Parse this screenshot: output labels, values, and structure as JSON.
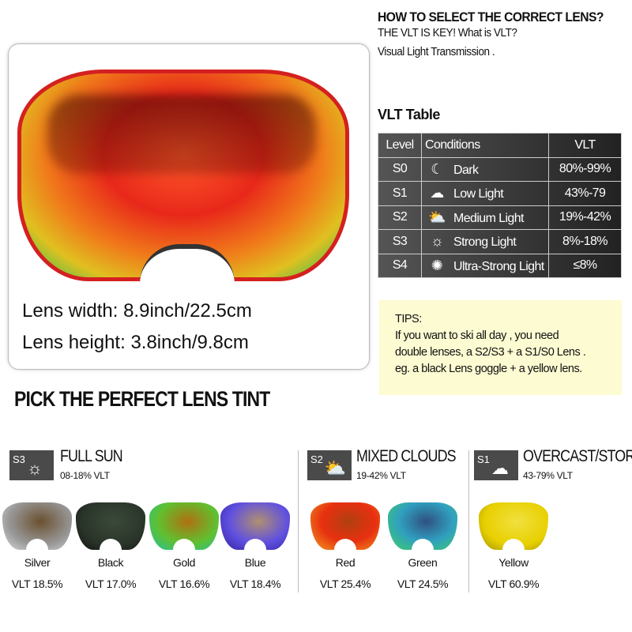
{
  "product": {
    "lens_width": "Lens width: 8.9inch/22.5cm",
    "lens_height": "Lens height: 3.8inch/9.8cm"
  },
  "guide": {
    "title": "HOW TO SELECT THE CORRECT LENS?",
    "line1": "THE VLT  IS KEY! What is VLT?",
    "line2": "Visual Light Transmission .",
    "table_title": "VLT Table"
  },
  "vlt_table": {
    "headers": [
      "Level",
      "Conditions",
      "VLT"
    ],
    "rows": [
      {
        "level": "S0",
        "icon": "moon-icon",
        "glyph": "☾",
        "condition": "Dark",
        "vlt": "80%-99%"
      },
      {
        "level": "S1",
        "icon": "cloud-icon",
        "glyph": "☁",
        "condition": "Low Light",
        "vlt": "43%-79"
      },
      {
        "level": "S2",
        "icon": "sun-cloud-icon",
        "glyph": "⛅",
        "condition": "Medium Light",
        "vlt": "19%-42%"
      },
      {
        "level": "S3",
        "icon": "sun-icon",
        "glyph": "☼",
        "condition": "Strong Light",
        "vlt": "8%-18%"
      },
      {
        "level": "S4",
        "icon": "bright-sun-icon",
        "glyph": "✺",
        "condition": "Ultra-Strong Light",
        "vlt": "≤8%"
      }
    ]
  },
  "tips": {
    "label": "TIPS:",
    "line1": "If you want to ski all day , you need",
    "line2": "double lenses, a S2/S3 + a S1/S0 Lens .",
    "line3": "eg. a black Lens goggle + a yellow lens."
  },
  "tint": {
    "title": "PICK THE PERFECT LENS TINT",
    "groups": [
      {
        "badge": "S3",
        "icon": "sun-icon",
        "glyph": "☼",
        "title": "FULL SUN",
        "range": "08-18% VLT"
      },
      {
        "badge": "S2",
        "icon": "sun-cloud-icon",
        "glyph": "⛅",
        "title": "MIXED CLOUDS",
        "range": "19-42% VLT"
      },
      {
        "badge": "S1",
        "icon": "cloud-icon",
        "glyph": "☁",
        "title": "OVERCAST/STORM",
        "range": "43-79% VLT"
      }
    ],
    "lenses": [
      {
        "name": "Silver",
        "vlt": "VLT 18.5%"
      },
      {
        "name": "Black",
        "vlt": "VLT 17.0%"
      },
      {
        "name": "Gold",
        "vlt": "VLT 16.6%"
      },
      {
        "name": "Blue",
        "vlt": "VLT 18.4%"
      },
      {
        "name": "Red",
        "vlt": "VLT 25.4%"
      },
      {
        "name": "Green",
        "vlt": "VLT 24.5%"
      },
      {
        "name": "Yellow",
        "vlt": "VLT 60.9%"
      }
    ]
  },
  "colors": {
    "table_bg": "#333333",
    "tips_bg": "#fdfbd2",
    "badge_bg": "#4a4a4a",
    "frame_red": "#d42020"
  }
}
